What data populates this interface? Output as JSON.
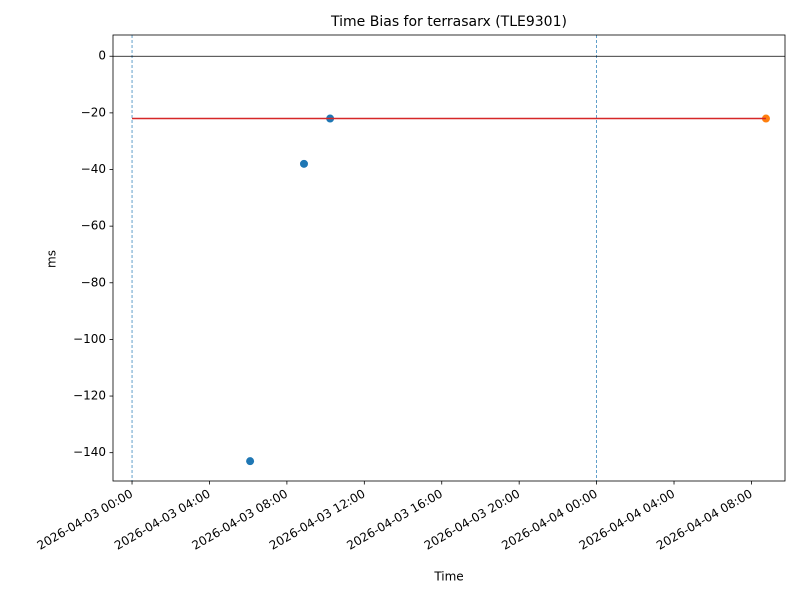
{
  "chart_data": {
    "type": "scatter",
    "title": "Time Bias for terrasarx (TLE9301)",
    "xlabel": "Time",
    "ylabel": "ms",
    "xlim": [
      "2026-04-02 23:01",
      "2026-04-04 09:44"
    ],
    "xticks": [
      "2026-04-03 00:00",
      "2026-04-03 04:00",
      "2026-04-03 08:00",
      "2026-04-03 12:00",
      "2026-04-03 16:00",
      "2026-04-03 20:00",
      "2026-04-04 00:00",
      "2026-04-04 04:00",
      "2026-04-04 08:00"
    ],
    "ylim": [
      -150,
      7.5
    ],
    "yticks": [
      0,
      {
        "value": -20,
        "label": "−20"
      },
      {
        "value": -40,
        "label": "−40"
      },
      {
        "value": -60,
        "label": "−60"
      },
      {
        "value": -80,
        "label": "−80"
      },
      {
        "value": -100,
        "label": "−100"
      },
      {
        "value": -120,
        "label": "−120"
      },
      {
        "value": -140,
        "label": "−140"
      }
    ],
    "series": [
      {
        "color": "#1f77b4",
        "x": [
          "2026-04-03 06:06",
          "2026-04-03 08:53",
          "2026-04-03 10:14"
        ],
        "values": [
          -143,
          -38,
          -22
        ]
      },
      {
        "color": "#ff7f0e",
        "x": [
          "2026-04-04 08:45"
        ],
        "values": [
          -22
        ]
      },
      {
        "style": "line",
        "color": "#d62728",
        "x": [
          "2026-04-03 00:00",
          "2026-04-04 08:45"
        ],
        "values": [
          -22,
          -22
        ]
      }
    ],
    "hlines": [
      {
        "y": 0,
        "color": "#000000"
      }
    ],
    "vlines": [
      {
        "x": "2026-04-03 00:00",
        "color": "#1f77b4"
      },
      {
        "x": "2026-04-04 00:00",
        "color": "#1f77b4"
      }
    ]
  }
}
